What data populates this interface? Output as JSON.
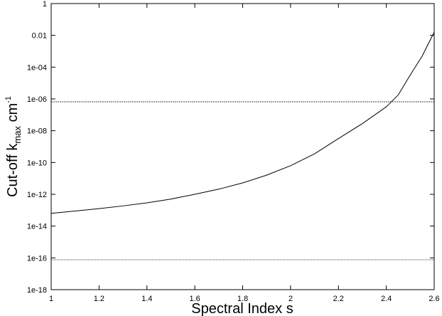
{
  "chart_data": {
    "type": "line",
    "xlabel": "Spectral Index s",
    "ylabel": {
      "main": "Cut-off k",
      "sub": "max",
      "unit": " cm",
      "sup": "-1"
    },
    "x": [
      1,
      1.1,
      1.2,
      1.3,
      1.4,
      1.5,
      1.6,
      1.7,
      1.8,
      1.9,
      2,
      2.1,
      2.2,
      2.3,
      2.4,
      2.45,
      2.5,
      2.55,
      2.6
    ],
    "series": [
      {
        "color": "#000000",
        "values": [
          6.3e-14,
          8.9e-14,
          1.26e-13,
          1.86e-13,
          2.9e-13,
          5e-13,
          1e-12,
          2.1e-12,
          5.2e-12,
          1.6e-11,
          6.3e-11,
          3.5e-10,
          3.2e-09,
          2.8e-08,
          3.2e-07,
          1.8e-06,
          3.2e-05,
          0.0005,
          0.016
        ]
      }
    ],
    "hlines": [
      {
        "value": 6.6e-07,
        "style": "dashed",
        "color": "#000000"
      },
      {
        "value": 7.6e-17,
        "style": "dotted",
        "color": "#000000"
      }
    ],
    "xlim": [
      1,
      2.6
    ],
    "xticks": [
      1,
      1.2,
      1.4,
      1.6,
      1.8,
      2,
      2.2,
      2.4,
      2.6
    ],
    "ylim": [
      1e-18,
      1
    ],
    "yscale": "log",
    "yticks": [
      1,
      0.01,
      {
        "value": 0.0001,
        "label": "1e-04"
      },
      {
        "value": 1e-06,
        "label": "1e-06"
      },
      {
        "value": 1e-08,
        "label": "1e-08"
      },
      {
        "value": 1e-10,
        "label": "1e-10"
      },
      {
        "value": 1e-12,
        "label": "1e-12"
      },
      {
        "value": 1e-14,
        "label": "1e-14"
      },
      {
        "value": 1e-16,
        "label": "1e-16"
      },
      {
        "value": 1e-18,
        "label": "1e-18"
      }
    ],
    "grid": false
  }
}
